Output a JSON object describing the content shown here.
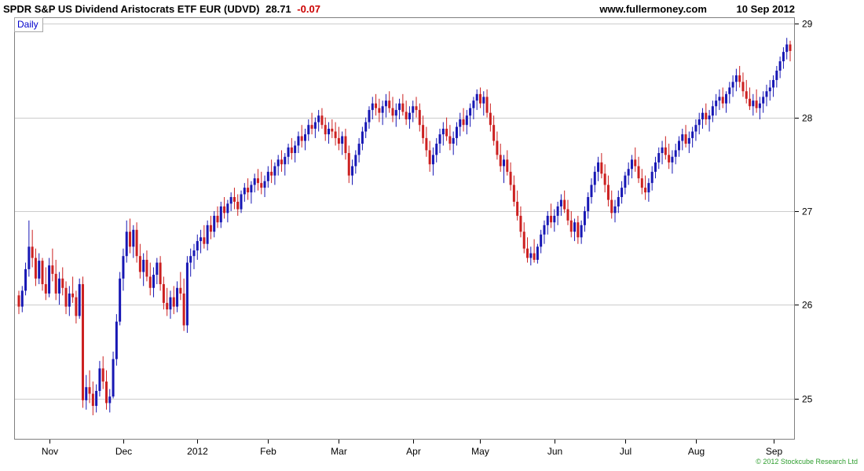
{
  "header": {
    "title": "SPDR S&P US Dividend Aristocrats ETF EUR (UDVD)",
    "last_price": "28.71",
    "change": "-0.07",
    "website": "www.fullermoney.com",
    "date": "10 Sep 2012"
  },
  "chart": {
    "frequency_label": "Daily",
    "copyright": "© 2012 Stockcube Research Ltd",
    "colors": {
      "up": "#1717b4",
      "down": "#cc2020",
      "grid": "#cccccc",
      "border": "#7f7f7f",
      "axis_text": "#000000",
      "daily_label": "#0000cc",
      "copyright_green": "#2e9e2e",
      "change_red": "#cc0000"
    }
  },
  "chart_data": {
    "type": "candlestick",
    "title": "SPDR S&P US Dividend Aristocrats ETF EUR (UDVD) 28.71 -0.07",
    "frequency": "Daily",
    "ylim": [
      24.56,
      29.07
    ],
    "y_ticks": [
      25,
      26,
      27,
      28,
      29
    ],
    "x_ticks": [
      {
        "label": "Nov",
        "index": 9
      },
      {
        "label": "Dec",
        "index": 31
      },
      {
        "label": "2012",
        "index": 53
      },
      {
        "label": "Feb",
        "index": 74
      },
      {
        "label": "Mar",
        "index": 95
      },
      {
        "label": "Apr",
        "index": 117
      },
      {
        "label": "May",
        "index": 137
      },
      {
        "label": "Jun",
        "index": 159
      },
      {
        "label": "Jul",
        "index": 180
      },
      {
        "label": "Aug",
        "index": 201
      },
      {
        "label": "Sep",
        "index": 224
      }
    ],
    "ohlc": [
      [
        26.1,
        26.15,
        25.9,
        25.98
      ],
      [
        25.98,
        26.2,
        25.92,
        26.15
      ],
      [
        26.15,
        26.45,
        26.1,
        26.38
      ],
      [
        26.38,
        26.9,
        26.3,
        26.62
      ],
      [
        26.62,
        26.8,
        26.4,
        26.5
      ],
      [
        26.5,
        26.6,
        26.2,
        26.28
      ],
      [
        26.28,
        26.55,
        26.22,
        26.47
      ],
      [
        26.47,
        26.5,
        26.15,
        26.22
      ],
      [
        26.22,
        26.4,
        26.05,
        26.12
      ],
      [
        26.12,
        26.5,
        26.08,
        26.42
      ],
      [
        26.42,
        26.6,
        26.25,
        26.33
      ],
      [
        26.33,
        26.48,
        26.05,
        26.12
      ],
      [
        26.12,
        26.35,
        26.0,
        26.28
      ],
      [
        26.28,
        26.4,
        26.1,
        26.18
      ],
      [
        26.18,
        26.25,
        25.9,
        25.98
      ],
      [
        25.98,
        26.2,
        25.88,
        26.12
      ],
      [
        26.12,
        26.3,
        26.02,
        26.08
      ],
      [
        26.08,
        26.15,
        25.8,
        25.88
      ],
      [
        25.88,
        26.28,
        25.85,
        26.22
      ],
      [
        26.22,
        26.3,
        24.9,
        24.98
      ],
      [
        24.98,
        25.25,
        24.88,
        25.12
      ],
      [
        25.12,
        25.3,
        24.95,
        25.05
      ],
      [
        25.05,
        25.18,
        24.82,
        24.92
      ],
      [
        24.92,
        25.15,
        24.85,
        25.08
      ],
      [
        25.08,
        25.4,
        25.02,
        25.32
      ],
      [
        25.32,
        25.45,
        25.1,
        25.18
      ],
      [
        25.18,
        25.3,
        24.88,
        24.95
      ],
      [
        24.95,
        25.1,
        24.85,
        25.02
      ],
      [
        25.02,
        25.5,
        25.0,
        25.42
      ],
      [
        25.42,
        25.9,
        25.35,
        25.82
      ],
      [
        25.82,
        26.35,
        25.78,
        26.28
      ],
      [
        26.28,
        26.6,
        26.15,
        26.52
      ],
      [
        26.52,
        26.9,
        26.45,
        26.78
      ],
      [
        26.78,
        26.92,
        26.55,
        26.62
      ],
      [
        26.62,
        26.85,
        26.5,
        26.8
      ],
      [
        26.8,
        26.88,
        26.45,
        26.52
      ],
      [
        26.52,
        26.65,
        26.28,
        26.35
      ],
      [
        26.35,
        26.55,
        26.2,
        26.48
      ],
      [
        26.48,
        26.58,
        26.25,
        26.3
      ],
      [
        26.3,
        26.45,
        26.1,
        26.18
      ],
      [
        26.18,
        26.4,
        26.08,
        26.32
      ],
      [
        26.32,
        26.5,
        26.22,
        26.45
      ],
      [
        26.45,
        26.52,
        26.15,
        26.22
      ],
      [
        26.22,
        26.3,
        25.95,
        26.02
      ],
      [
        26.02,
        26.18,
        25.88,
        25.95
      ],
      [
        25.95,
        26.15,
        25.85,
        26.08
      ],
      [
        26.08,
        26.2,
        25.9,
        25.98
      ],
      [
        25.98,
        26.25,
        25.92,
        26.18
      ],
      [
        26.18,
        26.35,
        26.05,
        26.12
      ],
      [
        26.12,
        26.28,
        25.72,
        25.78
      ],
      [
        25.78,
        26.52,
        25.7,
        26.45
      ],
      [
        26.45,
        26.6,
        26.3,
        26.52
      ],
      [
        26.52,
        26.65,
        26.38,
        26.58
      ],
      [
        26.58,
        26.75,
        26.48,
        26.68
      ],
      [
        26.68,
        26.8,
        26.55,
        26.72
      ],
      [
        26.72,
        26.85,
        26.6,
        26.65
      ],
      [
        26.65,
        26.9,
        26.58,
        26.85
      ],
      [
        26.85,
        26.95,
        26.7,
        26.78
      ],
      [
        26.78,
        27.0,
        26.72,
        26.95
      ],
      [
        26.95,
        27.05,
        26.82,
        26.88
      ],
      [
        26.88,
        27.1,
        26.82,
        27.05
      ],
      [
        27.05,
        27.15,
        26.92,
        26.98
      ],
      [
        26.98,
        27.12,
        26.88,
        27.08
      ],
      [
        27.08,
        27.2,
        27.0,
        27.15
      ],
      [
        27.15,
        27.25,
        27.02,
        27.1
      ],
      [
        27.1,
        27.18,
        26.95,
        27.02
      ],
      [
        27.02,
        27.22,
        26.98,
        27.18
      ],
      [
        27.18,
        27.3,
        27.1,
        27.25
      ],
      [
        27.25,
        27.35,
        27.12,
        27.2
      ],
      [
        27.2,
        27.32,
        27.08,
        27.28
      ],
      [
        27.28,
        27.4,
        27.2,
        27.35
      ],
      [
        27.35,
        27.45,
        27.22,
        27.3
      ],
      [
        27.3,
        27.42,
        27.18,
        27.25
      ],
      [
        27.25,
        27.38,
        27.15,
        27.32
      ],
      [
        27.32,
        27.48,
        27.25,
        27.42
      ],
      [
        27.42,
        27.55,
        27.3,
        27.38
      ],
      [
        27.38,
        27.52,
        27.28,
        27.48
      ],
      [
        27.48,
        27.6,
        27.38,
        27.55
      ],
      [
        27.55,
        27.65,
        27.42,
        27.5
      ],
      [
        27.5,
        27.62,
        27.38,
        27.58
      ],
      [
        27.58,
        27.72,
        27.5,
        27.68
      ],
      [
        27.68,
        27.78,
        27.55,
        27.62
      ],
      [
        27.62,
        27.75,
        27.52,
        27.7
      ],
      [
        27.7,
        27.85,
        27.62,
        27.8
      ],
      [
        27.8,
        27.92,
        27.68,
        27.75
      ],
      [
        27.75,
        27.88,
        27.65,
        27.82
      ],
      [
        27.82,
        27.98,
        27.75,
        27.92
      ],
      [
        27.92,
        28.05,
        27.82,
        27.88
      ],
      [
        27.88,
        28.0,
        27.78,
        27.95
      ],
      [
        27.95,
        28.08,
        27.85,
        28.02
      ],
      [
        28.02,
        28.1,
        27.88,
        27.92
      ],
      [
        27.92,
        28.0,
        27.75,
        27.82
      ],
      [
        27.82,
        27.95,
        27.72,
        27.88
      ],
      [
        27.88,
        27.98,
        27.78,
        27.85
      ],
      [
        27.85,
        27.95,
        27.7,
        27.78
      ],
      [
        27.78,
        27.9,
        27.65,
        27.72
      ],
      [
        27.72,
        27.85,
        27.6,
        27.8
      ],
      [
        27.8,
        27.88,
        27.55,
        27.62
      ],
      [
        27.62,
        27.7,
        27.3,
        27.38
      ],
      [
        27.38,
        27.55,
        27.28,
        27.48
      ],
      [
        27.48,
        27.65,
        27.4,
        27.6
      ],
      [
        27.6,
        27.78,
        27.52,
        27.72
      ],
      [
        27.72,
        27.9,
        27.65,
        27.85
      ],
      [
        27.85,
        28.0,
        27.78,
        27.95
      ],
      [
        27.95,
        28.12,
        27.88,
        28.08
      ],
      [
        28.08,
        28.22,
        27.98,
        28.15
      ],
      [
        28.15,
        28.25,
        28.02,
        28.1
      ],
      [
        28.1,
        28.2,
        27.95,
        28.05
      ],
      [
        28.05,
        28.18,
        27.92,
        28.12
      ],
      [
        28.12,
        28.25,
        28.0,
        28.18
      ],
      [
        28.18,
        28.28,
        28.05,
        28.1
      ],
      [
        28.1,
        28.22,
        27.95,
        28.02
      ],
      [
        28.02,
        28.15,
        27.9,
        28.08
      ],
      [
        28.08,
        28.2,
        27.98,
        28.15
      ],
      [
        28.15,
        28.25,
        28.02,
        28.06
      ],
      [
        28.06,
        28.18,
        27.92,
        27.98
      ],
      [
        27.98,
        28.12,
        27.88,
        28.05
      ],
      [
        28.05,
        28.18,
        27.95,
        28.12
      ],
      [
        28.12,
        28.22,
        28.0,
        28.08
      ],
      [
        28.08,
        28.15,
        27.85,
        27.92
      ],
      [
        27.92,
        28.02,
        27.72,
        27.78
      ],
      [
        27.78,
        27.9,
        27.58,
        27.65
      ],
      [
        27.65,
        27.75,
        27.42,
        27.5
      ],
      [
        27.5,
        27.68,
        27.38,
        27.6
      ],
      [
        27.6,
        27.78,
        27.52,
        27.72
      ],
      [
        27.72,
        27.88,
        27.62,
        27.82
      ],
      [
        27.82,
        27.95,
        27.7,
        27.88
      ],
      [
        27.88,
        28.0,
        27.75,
        27.8
      ],
      [
        27.8,
        27.92,
        27.65,
        27.72
      ],
      [
        27.72,
        27.85,
        27.6,
        27.78
      ],
      [
        27.78,
        27.95,
        27.7,
        27.9
      ],
      [
        27.9,
        28.05,
        27.8,
        27.98
      ],
      [
        27.98,
        28.1,
        27.85,
        27.92
      ],
      [
        27.92,
        28.08,
        27.82,
        28.02
      ],
      [
        28.02,
        28.15,
        27.9,
        28.1
      ],
      [
        28.1,
        28.22,
        27.98,
        28.18
      ],
      [
        28.18,
        28.3,
        28.08,
        28.25
      ],
      [
        28.25,
        28.32,
        28.1,
        28.15
      ],
      [
        28.15,
        28.28,
        28.02,
        28.22
      ],
      [
        28.22,
        28.3,
        28.0,
        28.05
      ],
      [
        28.05,
        28.15,
        27.85,
        27.92
      ],
      [
        27.92,
        28.02,
        27.7,
        27.75
      ],
      [
        27.75,
        27.85,
        27.55,
        27.6
      ],
      [
        27.6,
        27.72,
        27.42,
        27.48
      ],
      [
        27.48,
        27.6,
        27.3,
        27.55
      ],
      [
        27.55,
        27.65,
        27.38,
        27.42
      ],
      [
        27.42,
        27.52,
        27.22,
        27.28
      ],
      [
        27.28,
        27.38,
        27.05,
        27.1
      ],
      [
        27.1,
        27.22,
        26.9,
        26.95
      ],
      [
        26.95,
        27.05,
        26.72,
        26.78
      ],
      [
        26.78,
        26.88,
        26.55,
        26.6
      ],
      [
        26.6,
        26.72,
        26.45,
        26.5
      ],
      [
        26.5,
        26.62,
        26.42,
        26.55
      ],
      [
        26.55,
        26.7,
        26.45,
        26.48
      ],
      [
        26.48,
        26.65,
        26.44,
        26.62
      ],
      [
        26.62,
        26.8,
        26.55,
        26.75
      ],
      [
        26.75,
        26.9,
        26.65,
        26.85
      ],
      [
        26.85,
        27.0,
        26.75,
        26.95
      ],
      [
        26.95,
        27.08,
        26.82,
        26.88
      ],
      [
        26.88,
        27.02,
        26.78,
        26.95
      ],
      [
        26.95,
        27.1,
        26.85,
        27.05
      ],
      [
        27.05,
        27.18,
        26.95,
        27.12
      ],
      [
        27.12,
        27.22,
        26.98,
        27.02
      ],
      [
        27.02,
        27.12,
        26.85,
        26.9
      ],
      [
        26.9,
        27.0,
        26.72,
        26.78
      ],
      [
        26.78,
        26.92,
        26.68,
        26.88
      ],
      [
        26.88,
        26.95,
        26.65,
        26.72
      ],
      [
        26.72,
        26.9,
        26.65,
        26.85
      ],
      [
        26.85,
        27.05,
        26.78,
        27.0
      ],
      [
        27.0,
        27.2,
        26.92,
        27.15
      ],
      [
        27.15,
        27.35,
        27.08,
        27.28
      ],
      [
        27.28,
        27.48,
        27.2,
        27.42
      ],
      [
        27.42,
        27.58,
        27.32,
        27.52
      ],
      [
        27.52,
        27.62,
        27.35,
        27.4
      ],
      [
        27.4,
        27.5,
        27.2,
        27.28
      ],
      [
        27.28,
        27.38,
        27.05,
        27.12
      ],
      [
        27.12,
        27.22,
        26.92,
        26.98
      ],
      [
        26.98,
        27.12,
        26.88,
        27.05
      ],
      [
        27.05,
        27.22,
        26.98,
        27.15
      ],
      [
        27.15,
        27.32,
        27.08,
        27.25
      ],
      [
        27.25,
        27.42,
        27.18,
        27.38
      ],
      [
        27.38,
        27.52,
        27.28,
        27.45
      ],
      [
        27.45,
        27.6,
        27.35,
        27.55
      ],
      [
        27.55,
        27.68,
        27.42,
        27.48
      ],
      [
        27.48,
        27.58,
        27.3,
        27.35
      ],
      [
        27.35,
        27.45,
        27.18,
        27.25
      ],
      [
        27.25,
        27.38,
        27.12,
        27.2
      ],
      [
        27.2,
        27.35,
        27.1,
        27.3
      ],
      [
        27.3,
        27.48,
        27.22,
        27.42
      ],
      [
        27.42,
        27.58,
        27.35,
        27.52
      ],
      [
        27.52,
        27.68,
        27.45,
        27.62
      ],
      [
        27.62,
        27.75,
        27.5,
        27.68
      ],
      [
        27.68,
        27.8,
        27.55,
        27.6
      ],
      [
        27.6,
        27.72,
        27.45,
        27.52
      ],
      [
        27.52,
        27.65,
        27.4,
        27.58
      ],
      [
        27.58,
        27.72,
        27.5,
        27.65
      ],
      [
        27.65,
        27.8,
        27.58,
        27.75
      ],
      [
        27.75,
        27.88,
        27.65,
        27.82
      ],
      [
        27.82,
        27.92,
        27.68,
        27.72
      ],
      [
        27.72,
        27.85,
        27.62,
        27.78
      ],
      [
        27.78,
        27.9,
        27.68,
        27.85
      ],
      [
        27.85,
        27.98,
        27.75,
        27.92
      ],
      [
        27.92,
        28.05,
        27.82,
        27.98
      ],
      [
        27.98,
        28.1,
        27.88,
        28.05
      ],
      [
        28.05,
        28.15,
        27.92,
        27.98
      ],
      [
        27.98,
        28.08,
        27.85,
        28.02
      ],
      [
        28.02,
        28.18,
        27.95,
        28.12
      ],
      [
        28.12,
        28.25,
        28.02,
        28.18
      ],
      [
        28.18,
        28.3,
        28.08,
        28.22
      ],
      [
        28.22,
        28.32,
        28.1,
        28.15
      ],
      [
        28.15,
        28.28,
        28.05,
        28.25
      ],
      [
        28.25,
        28.38,
        28.15,
        28.32
      ],
      [
        28.32,
        28.45,
        28.22,
        28.38
      ],
      [
        28.38,
        28.52,
        28.28,
        28.45
      ],
      [
        28.45,
        28.55,
        28.32,
        28.38
      ],
      [
        28.38,
        28.48,
        28.22,
        28.28
      ],
      [
        28.28,
        28.4,
        28.15,
        28.2
      ],
      [
        28.2,
        28.32,
        28.08,
        28.12
      ],
      [
        28.12,
        28.25,
        28.02,
        28.18
      ],
      [
        28.18,
        28.3,
        28.05,
        28.1
      ],
      [
        28.1,
        28.22,
        27.98,
        28.15
      ],
      [
        28.15,
        28.28,
        28.05,
        28.22
      ],
      [
        28.22,
        28.35,
        28.12,
        28.28
      ],
      [
        28.28,
        28.4,
        28.18,
        28.32
      ],
      [
        28.32,
        28.45,
        28.22,
        28.4
      ],
      [
        28.4,
        28.55,
        28.32,
        28.5
      ],
      [
        28.5,
        28.65,
        28.42,
        28.6
      ],
      [
        28.6,
        28.75,
        28.52,
        28.7
      ],
      [
        28.7,
        28.85,
        28.62,
        28.78
      ],
      [
        28.78,
        28.82,
        28.6,
        28.71
      ]
    ]
  }
}
